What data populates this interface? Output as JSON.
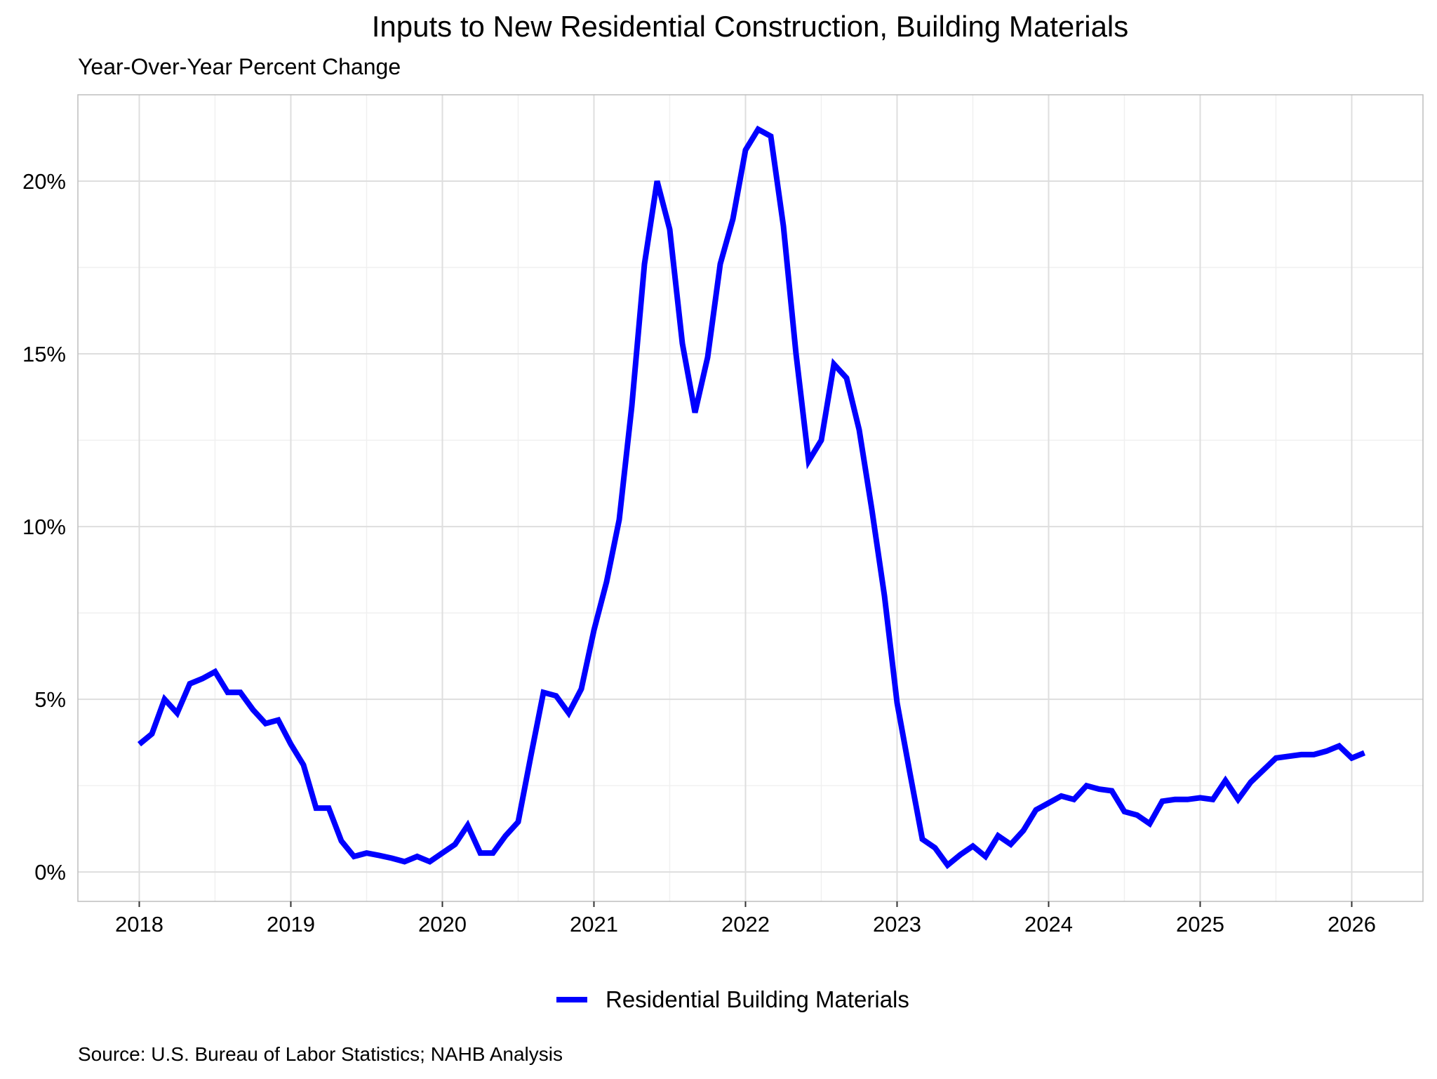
{
  "chart_data": {
    "type": "line",
    "title": "Inputs to New Residential Construction, Building Materials",
    "subtitle": "Year-Over-Year Percent Change",
    "xlabel": "",
    "ylabel": "",
    "source": "Source: U.S. Bureau of Labor Statistics; NAHB Analysis",
    "xlim": [
      2017.595,
      2026.47
    ],
    "ylim": [
      -0.85,
      22.5
    ],
    "x_ticks": [
      2018,
      2019,
      2020,
      2021,
      2022,
      2023,
      2024,
      2025,
      2026
    ],
    "x_tick_labels": [
      "2018",
      "2019",
      "2020",
      "2021",
      "2022",
      "2023",
      "2024",
      "2025",
      "2026"
    ],
    "y_ticks": [
      0,
      5,
      10,
      15,
      20
    ],
    "y_tick_labels": [
      "0%",
      "5%",
      "10%",
      "15%",
      "20%"
    ],
    "grid": true,
    "legend_position": "bottom",
    "start": "2018-01",
    "frequency": "monthly",
    "series": [
      {
        "name": "Residential Building Materials",
        "color": "#0000FF",
        "values": [
          3.7,
          4.0,
          5.0,
          4.6,
          5.45,
          5.6,
          5.8,
          5.2,
          5.2,
          4.7,
          4.3,
          4.4,
          3.7,
          3.1,
          1.85,
          1.85,
          0.9,
          0.45,
          0.55,
          0.48,
          0.4,
          0.3,
          0.45,
          0.3,
          0.55,
          0.8,
          1.35,
          0.55,
          0.55,
          1.05,
          1.45,
          3.35,
          5.2,
          5.1,
          4.6,
          5.3,
          7.0,
          8.4,
          10.2,
          13.5,
          17.6,
          20.0,
          18.6,
          15.3,
          13.3,
          14.9,
          17.6,
          18.9,
          20.9,
          21.5,
          21.3,
          18.7,
          15.0,
          11.9,
          12.5,
          14.7,
          14.3,
          12.8,
          10.5,
          8.0,
          4.9,
          2.9,
          0.95,
          0.7,
          0.2,
          0.5,
          0.75,
          0.45,
          1.05,
          0.8,
          1.2,
          1.8,
          2.0,
          2.2,
          2.1,
          2.5,
          2.4,
          2.35,
          1.75,
          1.65,
          1.4,
          2.05,
          2.1,
          2.1,
          2.15,
          2.1,
          2.65,
          2.1,
          2.6,
          2.95,
          3.3,
          3.35,
          3.4,
          3.4,
          3.5,
          3.65,
          3.3,
          3.45
        ]
      }
    ]
  }
}
